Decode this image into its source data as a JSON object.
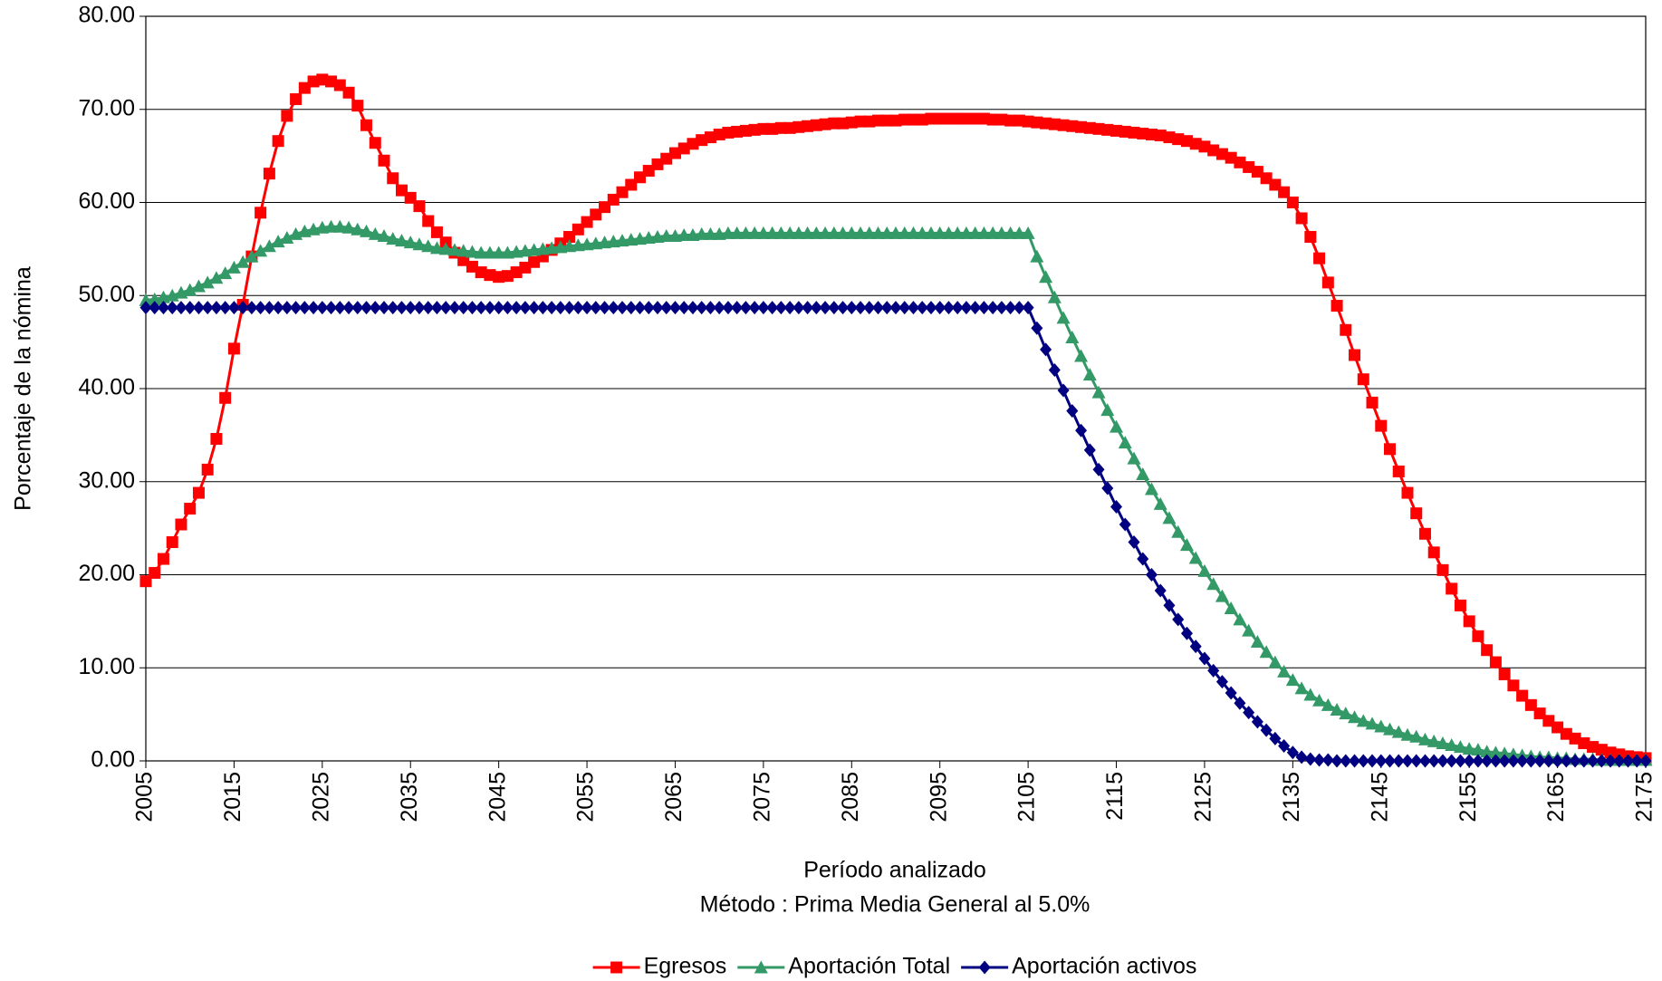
{
  "chart_data": {
    "type": "line",
    "x_label": "Período analizado",
    "subtitle": "Método : Prima Media General al 5.0%",
    "y_label": "Porcentaje de la nómina",
    "xlim": [
      2005,
      2175
    ],
    "xticks": [
      2005,
      2015,
      2025,
      2035,
      2045,
      2055,
      2065,
      2075,
      2085,
      2095,
      2105,
      2115,
      2125,
      2135,
      2145,
      2155,
      2165,
      2175
    ],
    "ylim": [
      0,
      80
    ],
    "yticks": [
      {
        "value": 0,
        "label": "0.00"
      },
      {
        "value": 10,
        "label": "10.00"
      },
      {
        "value": 20,
        "label": "20.00"
      },
      {
        "value": 30,
        "label": "30.00"
      },
      {
        "value": 40,
        "label": "40.00"
      },
      {
        "value": 50,
        "label": "50.00"
      },
      {
        "value": 60,
        "label": "60.00"
      },
      {
        "value": 70,
        "label": "70.00"
      },
      {
        "value": 80,
        "label": "80.00"
      }
    ],
    "grid": true,
    "legend": "bottom",
    "x": [
      2005,
      2006,
      2007,
      2008,
      2009,
      2010,
      2011,
      2012,
      2013,
      2014,
      2015,
      2016,
      2017,
      2018,
      2019,
      2020,
      2021,
      2022,
      2023,
      2024,
      2025,
      2026,
      2027,
      2028,
      2029,
      2030,
      2031,
      2032,
      2033,
      2034,
      2035,
      2036,
      2037,
      2038,
      2039,
      2040,
      2041,
      2042,
      2043,
      2044,
      2045,
      2046,
      2047,
      2048,
      2049,
      2050,
      2051,
      2052,
      2053,
      2054,
      2055,
      2056,
      2057,
      2058,
      2059,
      2060,
      2061,
      2062,
      2063,
      2064,
      2065,
      2066,
      2067,
      2068,
      2069,
      2070,
      2071,
      2072,
      2073,
      2074,
      2075,
      2076,
      2077,
      2078,
      2079,
      2080,
      2081,
      2082,
      2083,
      2084,
      2085,
      2086,
      2087,
      2088,
      2089,
      2090,
      2091,
      2092,
      2093,
      2094,
      2095,
      2096,
      2097,
      2098,
      2099,
      2100,
      2101,
      2102,
      2103,
      2104,
      2105,
      2106,
      2107,
      2108,
      2109,
      2110,
      2111,
      2112,
      2113,
      2114,
      2115,
      2116,
      2117,
      2118,
      2119,
      2120,
      2121,
      2122,
      2123,
      2124,
      2125,
      2126,
      2127,
      2128,
      2129,
      2130,
      2131,
      2132,
      2133,
      2134,
      2135,
      2136,
      2137,
      2138,
      2139,
      2140,
      2141,
      2142,
      2143,
      2144,
      2145,
      2146,
      2147,
      2148,
      2149,
      2150,
      2151,
      2152,
      2153,
      2154,
      2155,
      2156,
      2157,
      2158,
      2159,
      2160,
      2161,
      2162,
      2163,
      2164,
      2165,
      2166,
      2167,
      2168,
      2169,
      2170,
      2171,
      2172,
      2173,
      2174,
      2175
    ],
    "series": [
      {
        "name": "Egresos",
        "color": "#ff0000",
        "marker": "square",
        "values": [
          19.3,
          20.2,
          21.7,
          23.5,
          25.4,
          27.1,
          28.8,
          31.3,
          34.6,
          39.0,
          44.3,
          49.0,
          54.2,
          58.9,
          63.1,
          66.6,
          69.3,
          71.1,
          72.3,
          73.0,
          73.2,
          73.0,
          72.6,
          71.8,
          70.4,
          68.3,
          66.4,
          64.5,
          62.6,
          61.3,
          60.5,
          59.6,
          58.0,
          56.8,
          55.7,
          54.6,
          53.8,
          53.1,
          52.5,
          52.2,
          52.0,
          52.1,
          52.5,
          53.0,
          53.6,
          54.2,
          54.9,
          55.6,
          56.3,
          57.1,
          57.9,
          58.7,
          59.5,
          60.3,
          61.1,
          61.9,
          62.7,
          63.4,
          64.1,
          64.7,
          65.3,
          65.8,
          66.3,
          66.7,
          67.0,
          67.3,
          67.5,
          67.6,
          67.7,
          67.8,
          67.9,
          67.9,
          68.0,
          68.0,
          68.1,
          68.2,
          68.3,
          68.4,
          68.5,
          68.5,
          68.6,
          68.7,
          68.7,
          68.8,
          68.8,
          68.8,
          68.9,
          68.9,
          68.9,
          69.0,
          69.0,
          69.0,
          69.0,
          69.0,
          69.0,
          69.0,
          68.9,
          68.9,
          68.8,
          68.8,
          68.7,
          68.6,
          68.5,
          68.4,
          68.3,
          68.2,
          68.1,
          68.0,
          67.9,
          67.8,
          67.7,
          67.6,
          67.5,
          67.4,
          67.3,
          67.2,
          67.0,
          66.8,
          66.6,
          66.3,
          66.0,
          65.6,
          65.2,
          64.8,
          64.3,
          63.8,
          63.3,
          62.6,
          61.9,
          61.1,
          60.0,
          58.3,
          56.3,
          54.0,
          51.4,
          48.9,
          46.3,
          43.6,
          41.0,
          38.5,
          36.0,
          33.5,
          31.1,
          28.8,
          26.6,
          24.4,
          22.4,
          20.5,
          18.5,
          16.7,
          15.0,
          13.4,
          11.9,
          10.6,
          9.3,
          8.1,
          7.0,
          6.0,
          5.1,
          4.3,
          3.6,
          2.9,
          2.4,
          1.9,
          1.5,
          1.2,
          0.9,
          0.7,
          0.5,
          0.4,
          0.3
        ]
      },
      {
        "name": "Aportación Total",
        "color": "#339966",
        "marker": "triangle",
        "values": [
          49.5,
          49.6,
          49.8,
          50.0,
          50.3,
          50.6,
          51.0,
          51.4,
          51.9,
          52.4,
          53.0,
          53.6,
          54.2,
          54.8,
          55.3,
          55.8,
          56.2,
          56.6,
          56.9,
          57.1,
          57.3,
          57.4,
          57.4,
          57.3,
          57.1,
          56.9,
          56.6,
          56.4,
          56.1,
          55.9,
          55.7,
          55.5,
          55.3,
          55.1,
          55.0,
          54.9,
          54.8,
          54.7,
          54.6,
          54.6,
          54.6,
          54.6,
          54.7,
          54.8,
          54.9,
          55.0,
          55.1,
          55.2,
          55.3,
          55.4,
          55.5,
          55.6,
          55.7,
          55.8,
          55.9,
          56.0,
          56.1,
          56.2,
          56.3,
          56.4,
          56.4,
          56.5,
          56.5,
          56.6,
          56.6,
          56.6,
          56.7,
          56.7,
          56.7,
          56.7,
          56.7,
          56.7,
          56.7,
          56.7,
          56.7,
          56.7,
          56.7,
          56.7,
          56.7,
          56.7,
          56.7,
          56.7,
          56.7,
          56.7,
          56.7,
          56.7,
          56.7,
          56.7,
          56.7,
          56.7,
          56.7,
          56.7,
          56.7,
          56.7,
          56.7,
          56.7,
          56.7,
          56.7,
          56.7,
          56.7,
          56.7,
          54.2,
          52.0,
          49.8,
          47.6,
          45.5,
          43.5,
          41.5,
          39.6,
          37.7,
          35.9,
          34.2,
          32.5,
          30.8,
          29.2,
          27.6,
          26.1,
          24.6,
          23.2,
          21.8,
          20.4,
          19.0,
          17.7,
          16.4,
          15.2,
          14.0,
          12.8,
          11.7,
          10.6,
          9.6,
          8.7,
          7.8,
          7.1,
          6.5,
          6.0,
          5.5,
          5.1,
          4.7,
          4.3,
          4.0,
          3.7,
          3.4,
          3.1,
          2.8,
          2.6,
          2.3,
          2.1,
          1.9,
          1.7,
          1.5,
          1.3,
          1.2,
          1.0,
          0.9,
          0.8,
          0.7,
          0.6,
          0.5,
          0.4,
          0.4,
          0.3,
          0.3,
          0.2,
          0.2,
          0.2,
          0.1,
          0.1,
          0.1,
          0.1,
          0.1,
          0.1
        ]
      },
      {
        "name": "Aportación activos",
        "color": "#000080",
        "marker": "diamond",
        "values": [
          48.7,
          48.7,
          48.7,
          48.7,
          48.7,
          48.7,
          48.7,
          48.7,
          48.7,
          48.7,
          48.7,
          48.7,
          48.7,
          48.7,
          48.7,
          48.7,
          48.7,
          48.7,
          48.7,
          48.7,
          48.7,
          48.7,
          48.7,
          48.7,
          48.7,
          48.7,
          48.7,
          48.7,
          48.7,
          48.7,
          48.7,
          48.7,
          48.7,
          48.7,
          48.7,
          48.7,
          48.7,
          48.7,
          48.7,
          48.7,
          48.7,
          48.7,
          48.7,
          48.7,
          48.7,
          48.7,
          48.7,
          48.7,
          48.7,
          48.7,
          48.7,
          48.7,
          48.7,
          48.7,
          48.7,
          48.7,
          48.7,
          48.7,
          48.7,
          48.7,
          48.7,
          48.7,
          48.7,
          48.7,
          48.7,
          48.7,
          48.7,
          48.7,
          48.7,
          48.7,
          48.7,
          48.7,
          48.7,
          48.7,
          48.7,
          48.7,
          48.7,
          48.7,
          48.7,
          48.7,
          48.7,
          48.7,
          48.7,
          48.7,
          48.7,
          48.7,
          48.7,
          48.7,
          48.7,
          48.7,
          48.7,
          48.7,
          48.7,
          48.7,
          48.7,
          48.7,
          48.7,
          48.7,
          48.7,
          48.7,
          48.7,
          46.5,
          44.2,
          42.0,
          39.8,
          37.6,
          35.5,
          33.4,
          31.3,
          29.3,
          27.3,
          25.4,
          23.5,
          21.7,
          20.0,
          18.3,
          16.7,
          15.2,
          13.7,
          12.3,
          11.0,
          9.7,
          8.5,
          7.3,
          6.2,
          5.2,
          4.2,
          3.3,
          2.4,
          1.6,
          0.9,
          0.4,
          0.2,
          0.1,
          0.1,
          0.0,
          0.0,
          0.0,
          0.0,
          0.0,
          0.0,
          0.0,
          0.0,
          0.0,
          0.0,
          0.0,
          0.0,
          0.0,
          0.0,
          0.0,
          0.0,
          0.0,
          0.0,
          0.0,
          0.0,
          0.0,
          0.0,
          0.0,
          0.0,
          0.0,
          0.0,
          0.0,
          0.0,
          0.0,
          0.0,
          0.0,
          0.0,
          0.0,
          0.0,
          0.0,
          0.0
        ]
      }
    ]
  }
}
